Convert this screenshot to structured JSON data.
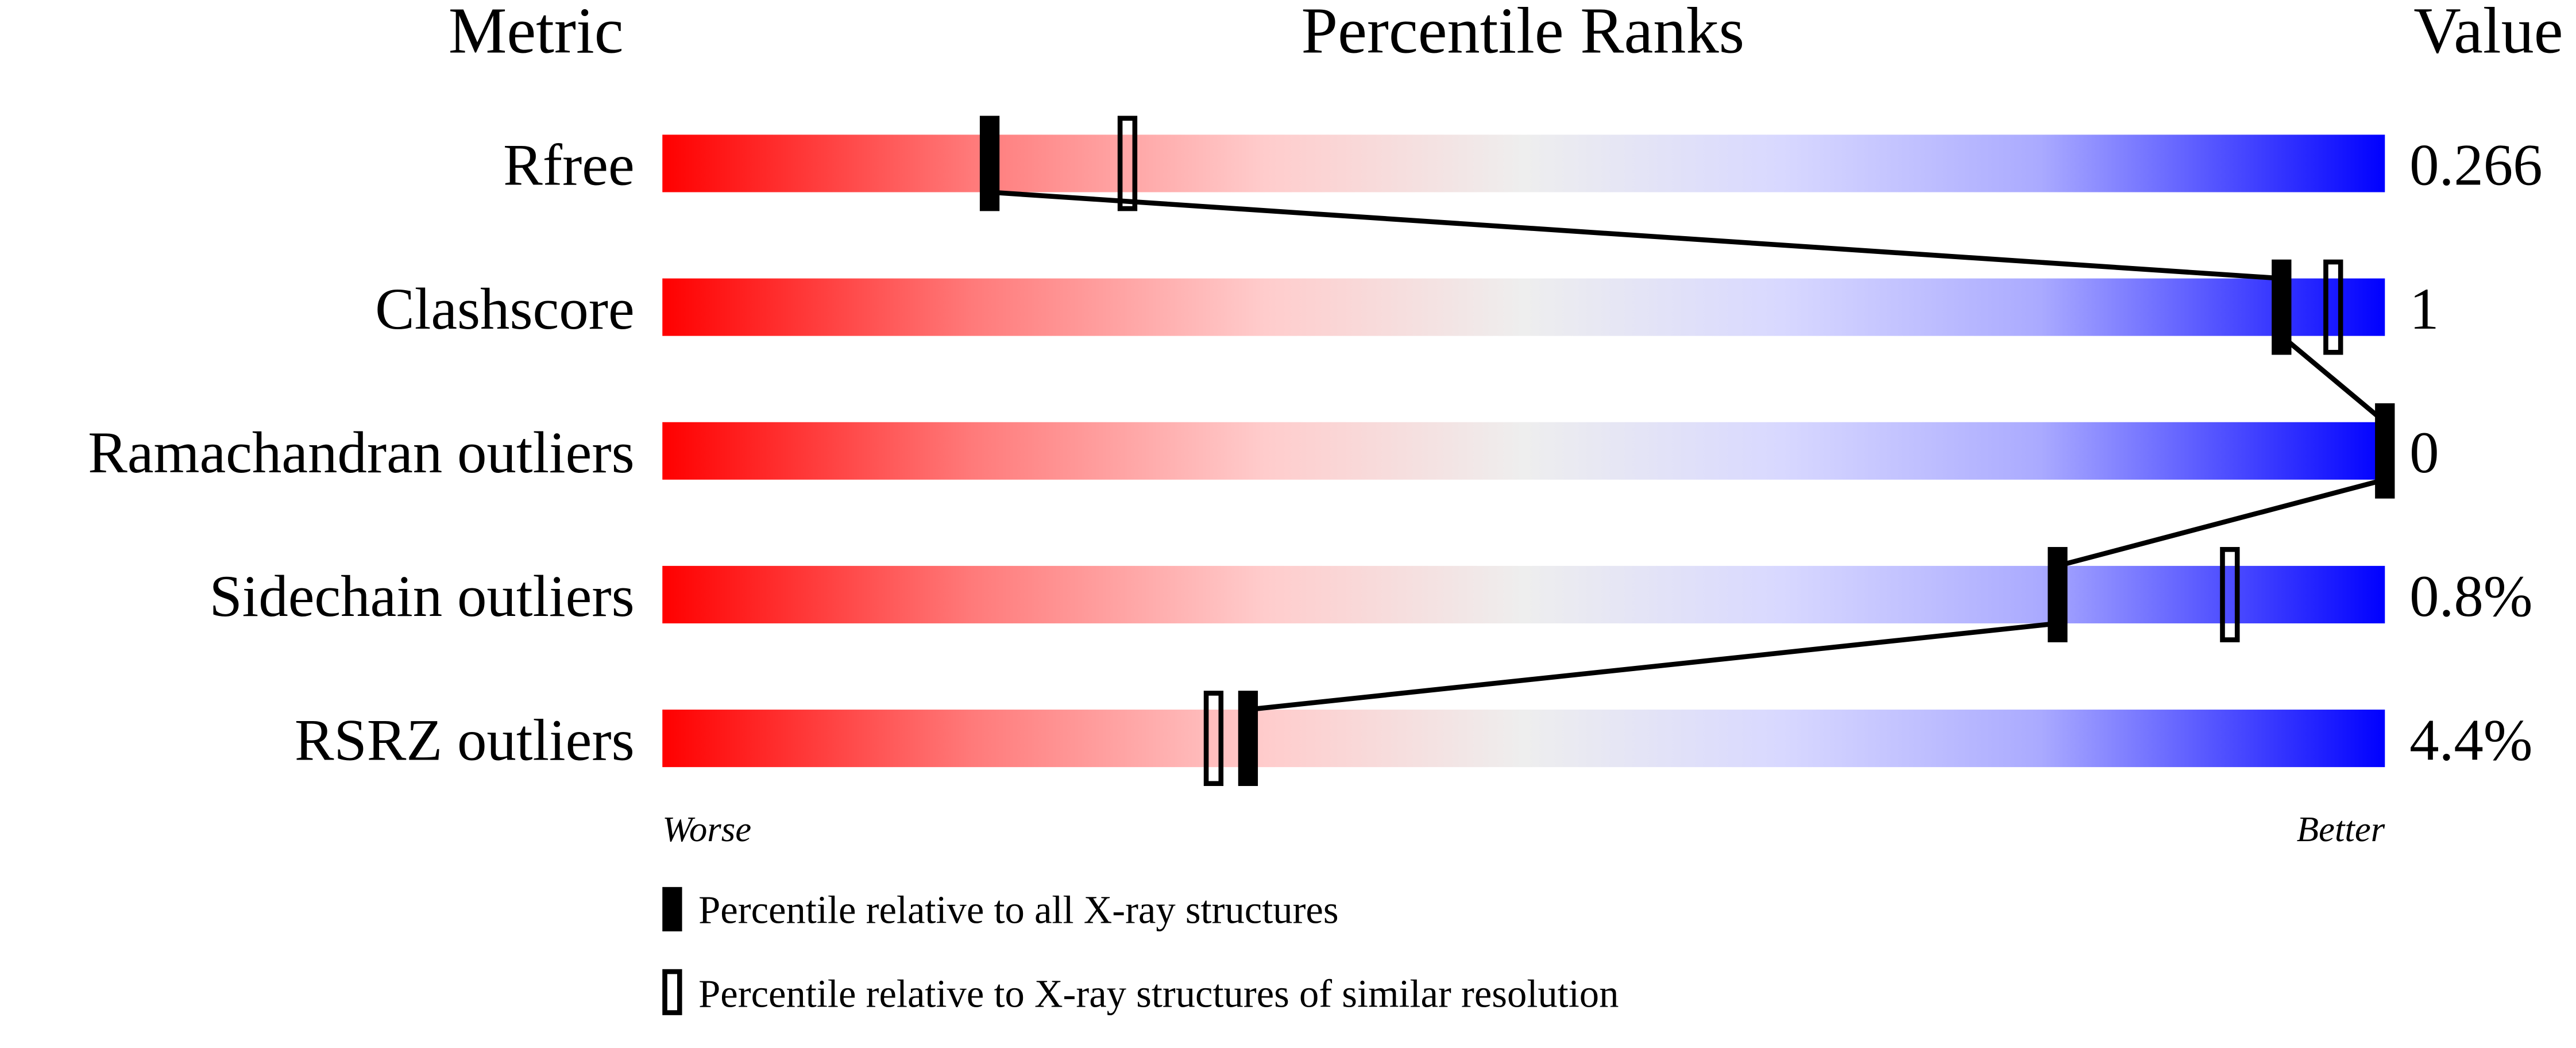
{
  "chart_data": {
    "type": "percentile-slider",
    "headers": {
      "metric": "Metric",
      "ranks": "Percentile Ranks",
      "value": "Value"
    },
    "xlim": [
      0,
      100
    ],
    "axis_labels": {
      "left": "Worse",
      "right": "Better"
    },
    "colors": {
      "worse": "#ff0000",
      "middle": "#eeeeee",
      "better": "#0000ff",
      "marker": "#000000"
    },
    "metrics": [
      {
        "name": "Rfree",
        "value": "0.266",
        "percentile_all": 19,
        "percentile_similar": 27
      },
      {
        "name": "Clashscore",
        "value": "1",
        "percentile_all": 94,
        "percentile_similar": 97
      },
      {
        "name": "Ramachandran outliers",
        "value": "0",
        "percentile_all": 100,
        "percentile_similar": null
      },
      {
        "name": "Sidechain outliers",
        "value": "0.8%",
        "percentile_all": 81,
        "percentile_similar": 91
      },
      {
        "name": "RSRZ outliers",
        "value": "4.4%",
        "percentile_all": 34,
        "percentile_similar": 32
      }
    ],
    "legend": [
      {
        "marker": "filled",
        "label": "Percentile relative to all X-ray structures"
      },
      {
        "marker": "open",
        "label": "Percentile relative to X-ray structures of similar resolution"
      }
    ]
  }
}
